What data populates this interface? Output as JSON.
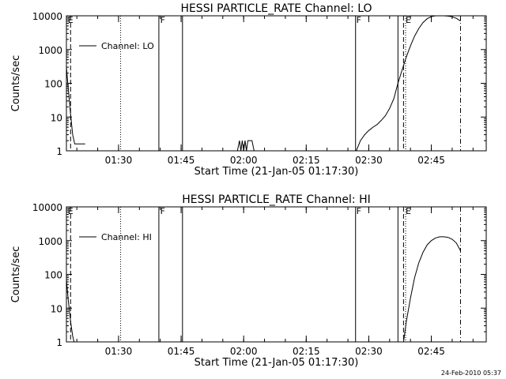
{
  "footer_timestamp": "24-Feb-2010 05:37",
  "chart_data": [
    {
      "type": "line",
      "title": "HESSI PARTICLE_RATE Channel: LO",
      "xlabel": "Start Time (21-Jan-05 01:17:30)",
      "ylabel": "Counts/sec",
      "legend": "Channel: LO",
      "legend_position": "top-left",
      "y_scale": "log",
      "ylim": [
        1,
        10000
      ],
      "y_ticks": [
        1,
        10,
        100,
        1000,
        10000
      ],
      "y_tick_labels": [
        "1",
        "10",
        "100",
        "1000",
        "10000"
      ],
      "xlim": [
        "01:17:30",
        "02:58:10"
      ],
      "x_ticks": [
        "01:30",
        "01:45",
        "02:00",
        "02:15",
        "02:30",
        "02:45"
      ],
      "flag_labels": [
        {
          "text": "E",
          "time": "01:17:50"
        },
        {
          "text": "F",
          "time": "01:40:00"
        },
        {
          "text": "F",
          "time": "02:27:00"
        },
        {
          "text": "E",
          "time": "02:38:50"
        }
      ],
      "vertical_lines": [
        {
          "time": "01:18:30",
          "style": "dashed"
        },
        {
          "time": "01:30:30",
          "style": "dotted"
        },
        {
          "time": "01:39:40",
          "style": "solid"
        },
        {
          "time": "01:45:20",
          "style": "solid"
        },
        {
          "time": "02:26:50",
          "style": "solid"
        },
        {
          "time": "02:37:00",
          "style": "solid"
        },
        {
          "time": "02:38:20",
          "style": "dashed"
        },
        {
          "time": "02:38:50",
          "style": "dotted"
        },
        {
          "time": "02:52:00",
          "style": "dashdot"
        }
      ],
      "series": [
        {
          "name": "Channel: LO",
          "x": [
            "01:17:30",
            "01:18:00",
            "01:18:30",
            "01:19:00",
            "01:19:30",
            "01:20:00",
            "01:21:00",
            "01:22:00"
          ],
          "y": [
            300,
            60,
            12,
            3,
            1.6,
            1.6,
            1.6,
            1.6
          ]
        },
        {
          "name": "Channel: LO",
          "x": [
            "01:58:30",
            "01:59:00",
            "01:59:20",
            "01:59:40",
            "02:00:00",
            "02:00:20",
            "02:00:40",
            "02:01:00",
            "02:01:30",
            "02:02:00",
            "02:02:30",
            "02:03:00"
          ],
          "y": [
            1,
            2,
            1,
            2,
            1,
            2,
            1,
            2,
            2,
            2,
            1,
            1
          ]
        },
        {
          "name": "Channel: LO",
          "x": [
            "02:27:00",
            "02:28:00",
            "02:29:00",
            "02:30:00",
            "02:31:00",
            "02:32:00",
            "02:33:00",
            "02:34:00",
            "02:35:00",
            "02:36:00",
            "02:37:00",
            "02:38:00",
            "02:39:00",
            "02:40:00",
            "02:41:00",
            "02:42:00",
            "02:43:00",
            "02:44:00",
            "02:45:00",
            "02:46:00",
            "02:47:00",
            "02:48:00",
            "02:49:00",
            "02:50:00",
            "02:51:00",
            "02:52:00"
          ],
          "y": [
            1,
            2,
            3,
            4,
            5,
            6,
            8,
            11,
            18,
            35,
            100,
            250,
            600,
            1300,
            2500,
            4200,
            6300,
            8200,
            9500,
            10000,
            10000,
            10000,
            9800,
            9300,
            8400,
            7000
          ]
        }
      ]
    },
    {
      "type": "line",
      "title": "HESSI PARTICLE_RATE Channel: HI",
      "xlabel": "Start Time (21-Jan-05 01:17:30)",
      "ylabel": "Counts/sec",
      "legend": "Channel: HI",
      "legend_position": "top-left",
      "y_scale": "log",
      "ylim": [
        1,
        10000
      ],
      "y_ticks": [
        1,
        10,
        100,
        1000,
        10000
      ],
      "y_tick_labels": [
        "1",
        "10",
        "100",
        "1000",
        "10000"
      ],
      "xlim": [
        "01:17:30",
        "02:58:10"
      ],
      "x_ticks": [
        "01:30",
        "01:45",
        "02:00",
        "02:15",
        "02:30",
        "02:45"
      ],
      "flag_labels": [
        {
          "text": "E",
          "time": "01:17:50"
        },
        {
          "text": "F",
          "time": "01:40:00"
        },
        {
          "text": "F",
          "time": "02:27:00"
        },
        {
          "text": "E",
          "time": "02:38:50"
        }
      ],
      "vertical_lines": [
        {
          "time": "01:18:30",
          "style": "dashed"
        },
        {
          "time": "01:30:30",
          "style": "dotted"
        },
        {
          "time": "01:39:40",
          "style": "solid"
        },
        {
          "time": "01:45:20",
          "style": "solid"
        },
        {
          "time": "02:26:50",
          "style": "solid"
        },
        {
          "time": "02:37:00",
          "style": "solid"
        },
        {
          "time": "02:38:20",
          "style": "dashed"
        },
        {
          "time": "02:38:50",
          "style": "dotted"
        },
        {
          "time": "02:52:00",
          "style": "dashdot"
        }
      ],
      "series": [
        {
          "name": "Channel: HI",
          "x": [
            "01:17:30",
            "01:18:00",
            "01:18:30",
            "01:19:00",
            "01:19:20"
          ],
          "y": [
            70,
            15,
            4,
            1.5,
            1
          ]
        },
        {
          "name": "Channel: HI",
          "x": [
            "02:38:20",
            "02:39:00",
            "02:40:00",
            "02:41:00",
            "02:42:00",
            "02:43:00",
            "02:44:00",
            "02:45:00",
            "02:46:00",
            "02:47:00",
            "02:48:00",
            "02:49:00",
            "02:50:00",
            "02:51:00",
            "02:52:00"
          ],
          "y": [
            1,
            4,
            20,
            80,
            220,
            450,
            750,
            1000,
            1200,
            1300,
            1300,
            1250,
            1100,
            850,
            500
          ]
        }
      ]
    }
  ]
}
